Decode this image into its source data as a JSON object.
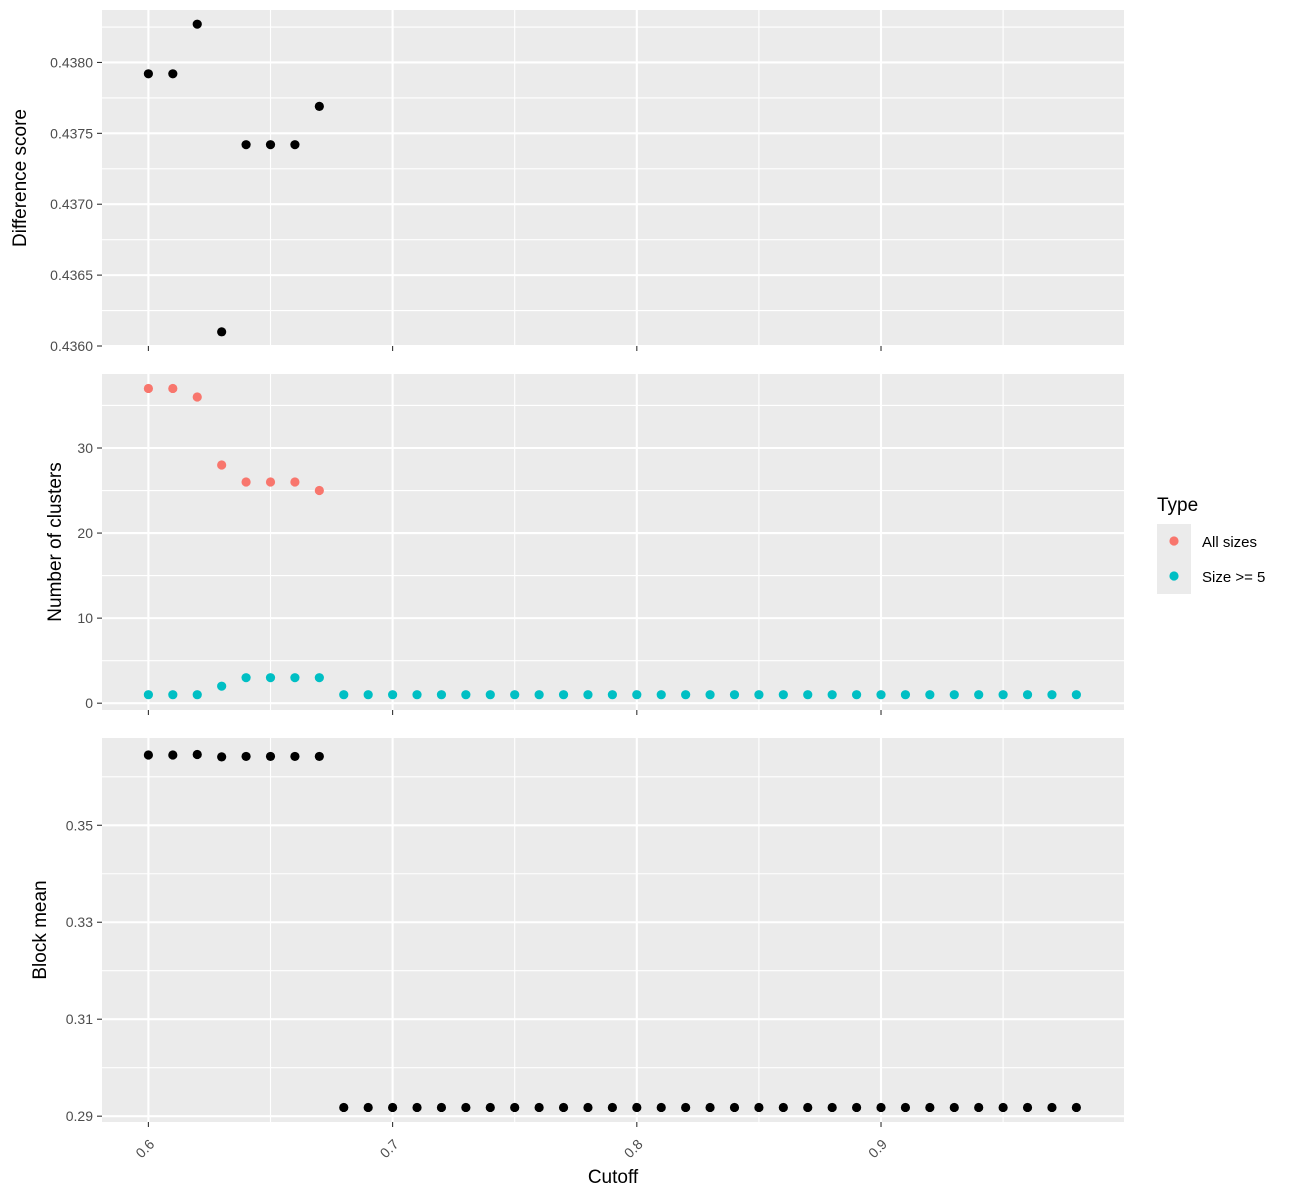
{
  "chart_data": [
    {
      "type": "scatter",
      "panel": "top",
      "ylabel": "Difference score",
      "ylim": [
        0.436,
        0.43837
      ],
      "yticks": [
        {
          "value": 0.436,
          "label": "0.4360"
        },
        {
          "value": 0.4365,
          "label": "0.4365"
        },
        {
          "value": 0.437,
          "label": "0.4370"
        },
        {
          "value": 0.4375,
          "label": "0.4375"
        },
        {
          "value": 0.438,
          "label": "0.4380"
        }
      ],
      "series": [
        {
          "color": "#000000",
          "x": [
            0.6,
            0.61,
            0.62,
            0.63,
            0.64,
            0.65,
            0.66,
            0.67
          ],
          "y": [
            0.43792,
            0.43792,
            0.43827,
            0.4361,
            0.43742,
            0.43742,
            0.43742,
            0.43769
          ]
        }
      ]
    },
    {
      "type": "scatter",
      "panel": "middle",
      "ylabel": "Number of clusters",
      "ylim": [
        -0.8,
        38.7
      ],
      "yticks": [
        {
          "value": 0,
          "label": "0"
        },
        {
          "value": 10,
          "label": "10"
        },
        {
          "value": 20,
          "label": "20"
        },
        {
          "value": 30,
          "label": "30"
        }
      ],
      "series": [
        {
          "name": "All sizes",
          "color": "#F8766D",
          "x": [
            0.6,
            0.61,
            0.62,
            0.63,
            0.64,
            0.65,
            0.66,
            0.67
          ],
          "y": [
            37,
            37,
            36,
            28,
            26,
            26,
            26,
            25
          ]
        },
        {
          "name": "Size >= 5",
          "color": "#00BFC4",
          "x": [
            0.6,
            0.61,
            0.62,
            0.63,
            0.64,
            0.65,
            0.66,
            0.67,
            0.68,
            0.69,
            0.7,
            0.71,
            0.72,
            0.73,
            0.74,
            0.75,
            0.76,
            0.77,
            0.78,
            0.79,
            0.8,
            0.81,
            0.82,
            0.83,
            0.84,
            0.85,
            0.86,
            0.87,
            0.88,
            0.89,
            0.9,
            0.91,
            0.92,
            0.93,
            0.94,
            0.95,
            0.96,
            0.97,
            0.98
          ],
          "y": [
            1,
            1,
            1,
            2,
            3,
            3,
            3,
            3,
            1,
            1,
            1,
            1,
            1,
            1,
            1,
            1,
            1,
            1,
            1,
            1,
            1,
            1,
            1,
            1,
            1,
            1,
            1,
            1,
            1,
            1,
            1,
            1,
            1,
            1,
            1,
            1,
            1,
            1,
            1
          ]
        }
      ]
    },
    {
      "type": "scatter",
      "panel": "bottom",
      "ylabel": "Block mean",
      "ylim": [
        0.2888,
        0.368
      ],
      "yticks": [
        {
          "value": 0.29,
          "label": "0.29"
        },
        {
          "value": 0.31,
          "label": "0.31"
        },
        {
          "value": 0.33,
          "label": "0.33"
        },
        {
          "value": 0.35,
          "label": "0.35"
        }
      ],
      "series": [
        {
          "color": "#000000",
          "x": [
            0.6,
            0.61,
            0.62,
            0.63,
            0.64,
            0.65,
            0.66,
            0.67,
            0.68,
            0.69,
            0.7,
            0.71,
            0.72,
            0.73,
            0.74,
            0.75,
            0.76,
            0.77,
            0.78,
            0.79,
            0.8,
            0.81,
            0.82,
            0.83,
            0.84,
            0.85,
            0.86,
            0.87,
            0.88,
            0.89,
            0.9,
            0.91,
            0.92,
            0.93,
            0.94,
            0.95,
            0.96,
            0.97,
            0.98
          ],
          "y": [
            0.3645,
            0.3645,
            0.3646,
            0.3641,
            0.3642,
            0.3642,
            0.3642,
            0.3642,
            0.2918,
            0.2918,
            0.2918,
            0.2918,
            0.2918,
            0.2918,
            0.2918,
            0.2918,
            0.2918,
            0.2918,
            0.2918,
            0.2918,
            0.2918,
            0.2918,
            0.2918,
            0.2918,
            0.2918,
            0.2918,
            0.2918,
            0.2918,
            0.2918,
            0.2918,
            0.2918,
            0.2918,
            0.2918,
            0.2918,
            0.2918,
            0.2918,
            0.2918,
            0.2918,
            0.2918
          ]
        }
      ]
    }
  ],
  "x_axis": {
    "xlabel": "Cutoff",
    "xlim": [
      0.581,
      0.9995
    ],
    "ticks": [
      {
        "value": 0.6,
        "label": "0.6"
      },
      {
        "value": 0.7,
        "label": "0.7"
      },
      {
        "value": 0.8,
        "label": "0.8"
      },
      {
        "value": 0.9,
        "label": "0.9"
      }
    ],
    "tick_label_rotation": -45
  },
  "legend": {
    "title": "Type",
    "placement": "right",
    "items": [
      {
        "label": "All sizes",
        "color": "#F8766D"
      },
      {
        "label": "Size >= 5",
        "color": "#00BFC4"
      }
    ]
  },
  "colors": {
    "panel_background": "#EBEBEB",
    "grid": "#FFFFFF"
  },
  "grid": true
}
